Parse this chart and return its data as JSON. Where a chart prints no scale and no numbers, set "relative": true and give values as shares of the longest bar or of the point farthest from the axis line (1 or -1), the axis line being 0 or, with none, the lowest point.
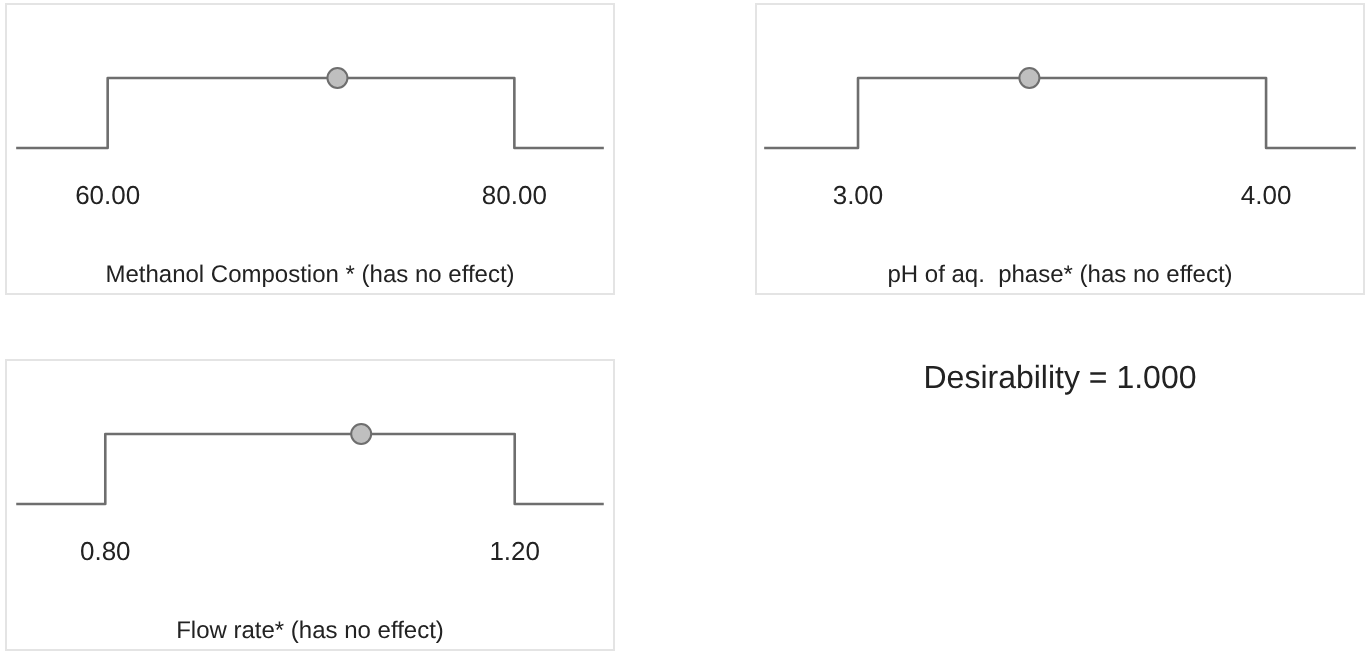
{
  "chart_data": [
    {
      "type": "line",
      "relative": true,
      "xlabel": "Methanol Compostion * (has no effect)",
      "xlim": [
        55.0,
        84.9
      ],
      "xticks": [
        {
          "value": 60,
          "label": "60.00"
        },
        {
          "value": 80,
          "label": "80.00"
        }
      ],
      "series": [
        {
          "type": "line",
          "color": "#6e6e6e",
          "x": [
            55.5,
            60,
            60,
            80,
            80,
            84.4
          ],
          "values": [
            0,
            0,
            1,
            1,
            0,
            0
          ]
        },
        {
          "type": "scatter",
          "marker": "circle",
          "color": "#bfbfbf",
          "x": [
            71.3
          ],
          "values": [
            1
          ]
        }
      ]
    },
    {
      "type": "line",
      "relative": true,
      "xlabel": "pH of aq.  phase* (has no effect)",
      "xlim": [
        2.75,
        4.24
      ],
      "xticks": [
        {
          "value": 3,
          "label": "3.00"
        },
        {
          "value": 4,
          "label": "4.00"
        }
      ],
      "series": [
        {
          "type": "line",
          "color": "#6e6e6e",
          "x": [
            2.77,
            3,
            3,
            4,
            4,
            4.22
          ],
          "values": [
            0,
            0,
            1,
            1,
            0,
            0
          ]
        },
        {
          "type": "scatter",
          "marker": "circle",
          "color": "#bfbfbf",
          "x": [
            3.42
          ],
          "values": [
            1
          ]
        }
      ]
    },
    {
      "type": "line",
      "relative": true,
      "xlabel": "Flow rate* (has no effect)",
      "xlim": [
        0.703,
        1.297
      ],
      "xticks": [
        {
          "value": 0.8,
          "label": "0.80"
        },
        {
          "value": 1.2,
          "label": "1.20"
        }
      ],
      "series": [
        {
          "type": "line",
          "color": "#6e6e6e",
          "x": [
            0.713,
            0.8,
            0.8,
            1.2,
            1.2,
            1.287
          ],
          "values": [
            0,
            0,
            1,
            1,
            0,
            0
          ]
        },
        {
          "type": "scatter",
          "marker": "circle",
          "color": "#bfbfbf",
          "x": [
            1.05
          ],
          "values": [
            1
          ]
        }
      ]
    },
    {
      "type": "other",
      "title": "Desirability = 1.000"
    }
  ]
}
